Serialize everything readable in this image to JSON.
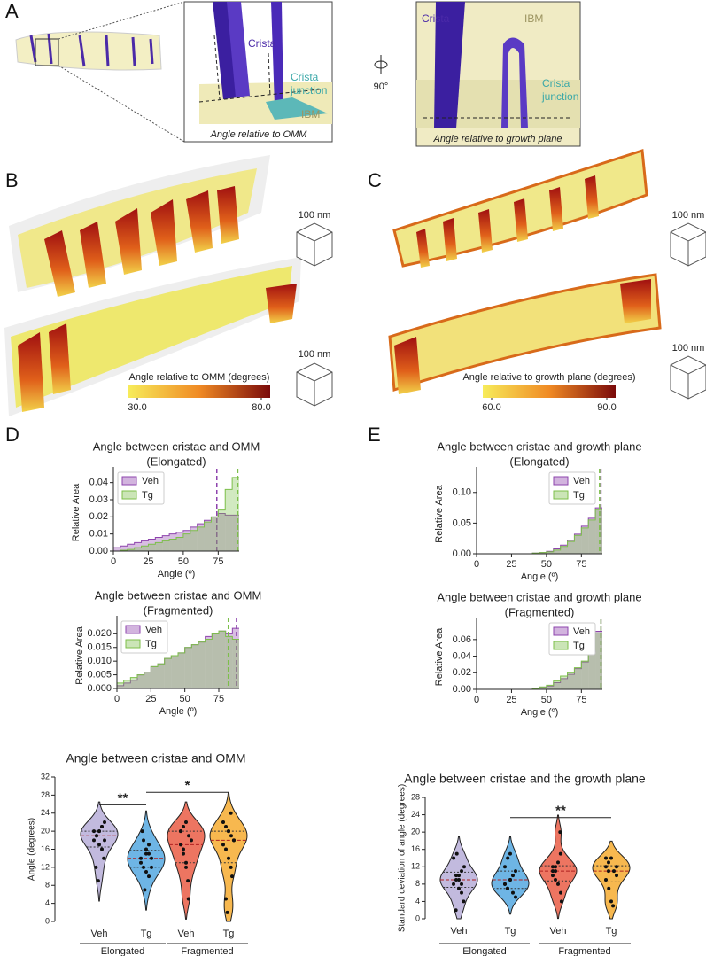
{
  "panel_labels": [
    "A",
    "B",
    "C",
    "D",
    "E"
  ],
  "panel_a": {
    "left": {
      "crista": "Crista",
      "junction": [
        "Crista",
        "junction"
      ],
      "ibm": "IBM",
      "caption": "Angle relative to OMM"
    },
    "rotation": "90°",
    "right": {
      "crista": "Crista",
      "ibm": "IBM",
      "junction": [
        "Crista",
        "junction"
      ],
      "caption": "Angle relative to growth plane"
    }
  },
  "panel_b": {
    "scale_bars": [
      "100 nm",
      "100 nm"
    ],
    "colorbar": {
      "label": "Angle relative to OMM (degrees)",
      "ticks": [
        {
          "value": 30,
          "label": "30.0"
        },
        {
          "value": 80,
          "label": "80.0"
        }
      ]
    }
  },
  "panel_c": {
    "scale_bars": [
      "100 nm",
      "100 nm"
    ],
    "colorbar": {
      "label": "Angle relative to growth plane (degrees)",
      "ticks": [
        {
          "value": 60,
          "label": "60.0"
        },
        {
          "value": 90,
          "label": "90.0"
        }
      ]
    }
  },
  "chart_data": [
    {
      "type": "histogram",
      "title": "Angle between cristae and OMM",
      "subtitle": "(Elongated)",
      "xlabel": "Angle (º)",
      "ylabel": "Relative Area",
      "bins": [
        0,
        5,
        10,
        15,
        20,
        25,
        30,
        35,
        40,
        45,
        50,
        55,
        60,
        65,
        70,
        75,
        80,
        85,
        90
      ],
      "xlim": [
        0,
        90
      ],
      "xticks": [
        0,
        25,
        50,
        75
      ],
      "ylim": [
        0,
        0.045
      ],
      "yticks": [
        {
          "value": 0,
          "label": "0.00"
        },
        0.01,
        0.02,
        0.03,
        0.04
      ],
      "legend": "upper left",
      "series": [
        {
          "name": "Veh",
          "color": "#8e44ad",
          "values": [
            0.002,
            0.003,
            0.004,
            0.005,
            0.006,
            0.007,
            0.008,
            0.009,
            0.01,
            0.011,
            0.012,
            0.014,
            0.016,
            0.018,
            0.02,
            0.022,
            0.021,
            0.021
          ],
          "mean": 74
        },
        {
          "name": "Tg",
          "color": "#7cbf4a",
          "values": [
            0,
            0.0005,
            0.001,
            0.002,
            0.003,
            0.004,
            0.005,
            0.006,
            0.007,
            0.008,
            0.01,
            0.012,
            0.014,
            0.017,
            0.02,
            0.024,
            0.036,
            0.043
          ],
          "mean": 89
        }
      ]
    },
    {
      "type": "histogram",
      "title": "Angle between cristae and OMM",
      "subtitle": "(Fragmented)",
      "xlabel": "Angle (º)",
      "ylabel": "Relative Area",
      "bins": [
        0,
        5,
        10,
        15,
        20,
        25,
        30,
        35,
        40,
        45,
        50,
        55,
        60,
        65,
        70,
        75,
        80,
        85,
        90
      ],
      "xlim": [
        0,
        90
      ],
      "xticks": [
        0,
        25,
        50,
        75
      ],
      "ylim": [
        0,
        0.024
      ],
      "yticks": [
        {
          "value": 0,
          "label": "0.000"
        },
        0.005,
        {
          "value": 0.01,
          "label": "0.010"
        },
        0.015,
        {
          "value": 0.02,
          "label": "0.020"
        }
      ],
      "legend": "upper left",
      "series": [
        {
          "name": "Veh",
          "color": "#8e44ad",
          "values": [
            0.001,
            0.002,
            0.003,
            0.005,
            0.006,
            0.008,
            0.009,
            0.011,
            0.012,
            0.013,
            0.015,
            0.016,
            0.017,
            0.019,
            0.02,
            0.021,
            0.02,
            0.022
          ],
          "mean": 88
        },
        {
          "name": "Tg",
          "color": "#7cbf4a",
          "values": [
            0.002,
            0.003,
            0.004,
            0.005,
            0.006,
            0.008,
            0.009,
            0.011,
            0.012,
            0.013,
            0.015,
            0.016,
            0.017,
            0.018,
            0.02,
            0.021,
            0.019,
            0.018
          ],
          "mean": 82
        }
      ]
    },
    {
      "type": "histogram",
      "title": "Angle between cristae and growth plane",
      "subtitle": "(Elongated)",
      "xlabel": "Angle (º)",
      "ylabel": "Relative Area",
      "bins": [
        0,
        5,
        10,
        15,
        20,
        25,
        30,
        35,
        40,
        45,
        50,
        55,
        60,
        65,
        70,
        75,
        80,
        85,
        90
      ],
      "xlim": [
        0,
        90
      ],
      "xticks": [
        0,
        25,
        50,
        75
      ],
      "ylim": [
        0,
        0.13
      ],
      "yticks": [
        {
          "value": 0,
          "label": "0.00"
        },
        0.05,
        {
          "value": 0.1,
          "label": "0.10"
        }
      ],
      "legend": "upper right",
      "series": [
        {
          "name": "Veh",
          "color": "#8e44ad",
          "values": [
            0,
            0,
            0,
            0,
            0,
            0,
            0,
            0,
            0.001,
            0.002,
            0.004,
            0.008,
            0.014,
            0.022,
            0.032,
            0.045,
            0.058,
            0.075
          ],
          "mean": 89
        },
        {
          "name": "Tg",
          "color": "#7cbf4a",
          "values": [
            0,
            0,
            0,
            0,
            0,
            0,
            0,
            0,
            0.001,
            0.002,
            0.003,
            0.006,
            0.012,
            0.02,
            0.03,
            0.042,
            0.055,
            0.072
          ],
          "mean": 88
        }
      ]
    },
    {
      "type": "histogram",
      "title": "Angle between cristae and growth plane",
      "subtitle": "(Fragmented)",
      "xlabel": "Angle (º)",
      "ylabel": "Relative Area",
      "bins": [
        0,
        5,
        10,
        15,
        20,
        25,
        30,
        35,
        40,
        45,
        50,
        55,
        60,
        65,
        70,
        75,
        80,
        85,
        90
      ],
      "xlim": [
        0,
        90
      ],
      "xticks": [
        0,
        25,
        50,
        75
      ],
      "ylim": [
        0,
        0.078
      ],
      "yticks": [
        {
          "value": 0,
          "label": "0.00"
        },
        0.02,
        0.04,
        0.06
      ],
      "legend": "upper right",
      "series": [
        {
          "name": "Veh",
          "color": "#8e44ad",
          "values": [
            0,
            0,
            0,
            0,
            0,
            0,
            0,
            0,
            0.001,
            0.002,
            0.004,
            0.008,
            0.013,
            0.018,
            0.025,
            0.033,
            0.045,
            0.07
          ],
          "mean": 89
        },
        {
          "name": "Tg",
          "color": "#7cbf4a",
          "values": [
            0,
            0,
            0,
            0,
            0,
            0,
            0,
            0,
            0.001,
            0.003,
            0.005,
            0.01,
            0.016,
            0.02,
            0.026,
            0.034,
            0.047,
            0.068
          ],
          "mean": 89
        }
      ]
    },
    {
      "type": "violin",
      "title": "Angle between cristae and OMM",
      "ylabel": "Angle (degrees)",
      "ylim": [
        0,
        32
      ],
      "yticks": [
        0,
        4,
        8,
        12,
        16,
        20,
        24,
        28,
        32
      ],
      "categories": [
        "Veh",
        "Tg",
        "Veh",
        "Tg"
      ],
      "groups": [
        {
          "name": "Elongated",
          "from": 0,
          "to": 1
        },
        {
          "name": "Fragmented",
          "from": 2,
          "to": 3
        }
      ],
      "violins": [
        {
          "color": "#b3a9d6",
          "values": [
            18,
            19,
            20,
            21,
            22,
            20,
            19,
            17,
            16,
            14,
            12,
            9,
            20,
            21,
            18
          ]
        },
        {
          "color": "#4aa3df",
          "values": [
            20,
            18,
            16,
            15,
            14,
            13,
            12,
            11,
            10,
            12,
            14,
            7,
            15,
            17
          ]
        },
        {
          "color": "#e8533a",
          "values": [
            20,
            21,
            22,
            19,
            18,
            17,
            16,
            12,
            9,
            5,
            20,
            15,
            13
          ]
        },
        {
          "color": "#f5a623",
          "values": [
            22,
            21,
            20,
            19,
            18,
            17,
            16,
            14,
            12,
            10,
            5,
            2,
            20,
            24,
            18
          ]
        }
      ],
      "annotations": [
        {
          "text": "**",
          "from": 0,
          "to": 1
        },
        {
          "text": "*",
          "from": 1,
          "to": 3
        }
      ]
    },
    {
      "type": "violin",
      "title": "Angle between cristae and the growth plane",
      "ylabel": "Standard deviation of angle (degrees)",
      "ylim": [
        0,
        28
      ],
      "yticks": [
        0,
        4,
        8,
        12,
        16,
        20,
        24,
        28
      ],
      "categories": [
        "Veh",
        "Tg",
        "Veh",
        "Tg"
      ],
      "groups": [
        {
          "name": "Elongated",
          "from": 0,
          "to": 1
        },
        {
          "name": "Fragmented",
          "from": 2,
          "to": 3
        }
      ],
      "violins": [
        {
          "color": "#b3a9d6",
          "values": [
            8,
            9,
            10,
            11,
            12,
            14,
            15,
            7,
            6,
            4,
            2,
            10,
            9,
            8
          ]
        },
        {
          "color": "#4aa3df",
          "values": [
            8,
            7,
            9,
            10,
            11,
            12,
            14,
            15,
            6,
            5,
            8,
            7,
            9
          ]
        },
        {
          "color": "#e8533a",
          "values": [
            11,
            12,
            13,
            15,
            20,
            10,
            9,
            8,
            6,
            4,
            12,
            11
          ]
        },
        {
          "color": "#f5a623",
          "values": [
            12,
            13,
            14,
            11,
            10,
            9,
            7,
            4,
            3,
            12,
            14,
            11
          ]
        }
      ],
      "annotations": [
        {
          "text": "**",
          "from": 1,
          "to": 3
        }
      ]
    }
  ]
}
